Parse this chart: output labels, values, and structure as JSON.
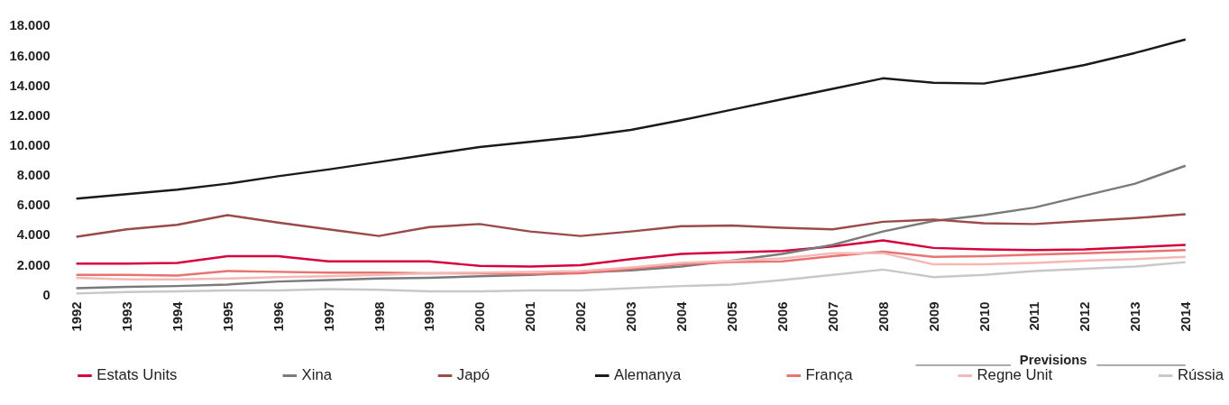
{
  "chart_data": {
    "type": "line",
    "x": [
      1992,
      1993,
      1994,
      1995,
      1996,
      1997,
      1998,
      1999,
      2000,
      2001,
      2002,
      2003,
      2004,
      2005,
      2006,
      2007,
      2008,
      2009,
      2010,
      2011,
      2012,
      2013,
      2014
    ],
    "series": [
      {
        "name": "Estats Units",
        "color": "#d6003c",
        "values": [
          2050,
          2050,
          2100,
          2550,
          2550,
          2200,
          2200,
          2200,
          1900,
          1850,
          1950,
          2350,
          2700,
          2800,
          2900,
          3200,
          3600,
          3100,
          3000,
          2950,
          3000,
          3150,
          3300
        ]
      },
      {
        "name": "Xina",
        "color": "#7a7a7c",
        "values": [
          400,
          500,
          550,
          650,
          850,
          950,
          1050,
          1100,
          1200,
          1300,
          1450,
          1600,
          1850,
          2250,
          2700,
          3300,
          4200,
          4900,
          5300,
          5800,
          6600,
          7400,
          8600
        ]
      },
      {
        "name": "Japó",
        "color": "#9b4a4a",
        "values": [
          3850,
          4350,
          4650,
          5300,
          4800,
          4350,
          3900,
          4500,
          4700,
          4200,
          3900,
          4200,
          4550,
          4600,
          4450,
          4350,
          4850,
          5000,
          4750,
          4700,
          4900,
          5100,
          5350
        ]
      },
      {
        "name": "Alemanya",
        "color": "#1a1a1a",
        "values": [
          6400,
          6700,
          7000,
          7400,
          7900,
          8350,
          8850,
          9350,
          9850,
          10200,
          10550,
          11000,
          11650,
          12350,
          13050,
          13750,
          14450,
          14150,
          14100,
          14700,
          15350,
          16150,
          17050
        ]
      },
      {
        "name": "França",
        "color": "#e8736f",
        "values": [
          1300,
          1300,
          1250,
          1550,
          1500,
          1450,
          1450,
          1400,
          1400,
          1350,
          1400,
          1700,
          2000,
          2150,
          2200,
          2550,
          2850,
          2500,
          2550,
          2650,
          2750,
          2850,
          2950
        ]
      },
      {
        "name": "Regne Unit",
        "color": "#f4b8b5",
        "values": [
          1100,
          1000,
          1000,
          1050,
          1150,
          1200,
          1300,
          1400,
          1450,
          1500,
          1550,
          1800,
          2100,
          2250,
          2400,
          2750,
          2750,
          2000,
          2000,
          2100,
          2250,
          2350,
          2500
        ]
      },
      {
        "name": "Rússia",
        "color": "#c8c8c8",
        "values": [
          50,
          150,
          200,
          250,
          250,
          350,
          300,
          200,
          200,
          250,
          250,
          400,
          550,
          650,
          950,
          1300,
          1650,
          1150,
          1300,
          1550,
          1700,
          1850,
          2150
        ]
      }
    ],
    "xlim": [
      1992,
      2014
    ],
    "xticks": [
      1992,
      1993,
      1994,
      1995,
      1996,
      1997,
      1998,
      1999,
      2000,
      2001,
      2002,
      2003,
      2004,
      2005,
      2006,
      2007,
      2008,
      2009,
      2010,
      2011,
      2012,
      2013,
      2014
    ],
    "ylim": [
      0,
      18000
    ],
    "yticks": [
      0,
      {
        "value": 2000,
        "label": "2.000"
      },
      {
        "value": 4000,
        "label": "4.000"
      },
      {
        "value": 6000,
        "label": "6.000"
      },
      {
        "value": 8000,
        "label": "8.000"
      },
      {
        "value": 10000,
        "label": "10.000"
      },
      {
        "value": 12000,
        "label": "12.000"
      },
      {
        "value": 14000,
        "label": "14.000"
      },
      {
        "value": 16000,
        "label": "16.000"
      },
      {
        "value": 18000,
        "label": "18.000"
      }
    ],
    "annotations": [
      "Previsions"
    ],
    "legend": "bottom",
    "grid": false,
    "marker": "none",
    "line_style": "solid"
  }
}
